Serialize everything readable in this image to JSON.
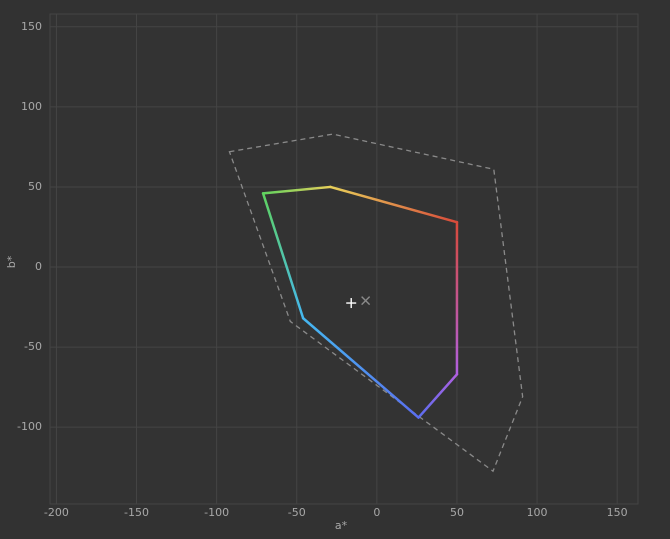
{
  "chart_data": {
    "type": "line",
    "x_label": "a*",
    "y_label": "b*",
    "xlim": [
      -204,
      163
    ],
    "ylim": [
      -148,
      158
    ],
    "xticks": [
      -200,
      -150,
      -100,
      -50,
      0,
      50,
      100,
      150
    ],
    "yticks": [
      -100,
      -50,
      0,
      50,
      100,
      150
    ],
    "grid": true,
    "gamut": {
      "x": [
        -71,
        -29,
        50,
        50,
        26,
        -46
      ],
      "values": [
        46,
        50,
        28,
        -67,
        -94,
        -32
      ],
      "colors": [
        "#5fd35f",
        "#e8d05a",
        "#d84a3a",
        "#b060e0",
        "#5a6ef0",
        "#45b8f0"
      ]
    },
    "reference": {
      "x": [
        -92,
        -27.5,
        73,
        91,
        72.5,
        -54
      ],
      "values": [
        72,
        83,
        61,
        -81,
        -127.5,
        -34
      ],
      "color": "#8a8a8a",
      "dashed": true
    },
    "markers": [
      {
        "x": -16,
        "y": -22.5,
        "symbol": "plus",
        "color": "#ffffff"
      },
      {
        "x": -7,
        "y": -21,
        "symbol": "cross",
        "color": "#8a8a8a"
      }
    ]
  }
}
